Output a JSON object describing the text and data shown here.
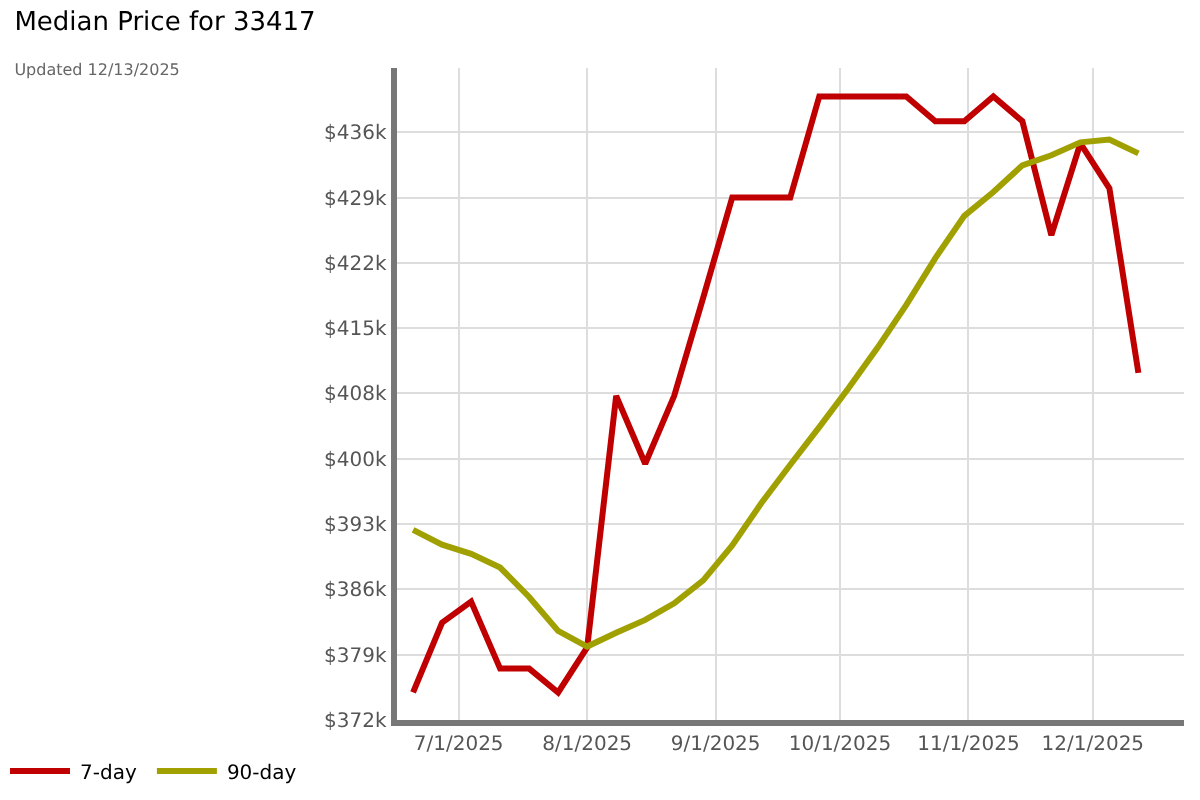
{
  "chart_data": {
    "type": "line",
    "title": "Median Price for 33417",
    "subtitle": "Updated 12/13/2025",
    "x": [
      "2025-06-20",
      "2025-06-27",
      "2025-07-04",
      "2025-07-11",
      "2025-07-18",
      "2025-07-25",
      "2025-08-01",
      "2025-08-08",
      "2025-08-15",
      "2025-08-22",
      "2025-08-29",
      "2025-09-05",
      "2025-09-12",
      "2025-09-19",
      "2025-09-26",
      "2025-10-03",
      "2025-10-10",
      "2025-10-17",
      "2025-10-24",
      "2025-10-31",
      "2025-11-07",
      "2025-11-14",
      "2025-11-21",
      "2025-11-28",
      "2025-12-05",
      "2025-12-12"
    ],
    "series": [
      {
        "name": "7-day",
        "color": "#c00000",
        "values": [
          375.0,
          382.6,
          384.9,
          377.6,
          377.6,
          375.0,
          379.9,
          407.3,
          399.9,
          407.3,
          418.0,
          428.9,
          428.9,
          428.9,
          439.9,
          439.9,
          439.9,
          439.9,
          437.2,
          437.2,
          439.9,
          437.2,
          424.8,
          434.8,
          429.9,
          409.8
        ]
      },
      {
        "name": "90-day",
        "color": "#a0a000",
        "values": [
          392.7,
          391.1,
          390.1,
          388.6,
          385.4,
          381.7,
          380.0,
          381.5,
          382.9,
          384.7,
          387.2,
          391.0,
          395.6,
          399.8,
          403.9,
          408.1,
          412.5,
          417.2,
          422.3,
          426.9,
          429.5,
          432.4,
          433.5,
          434.9,
          435.2,
          433.7
        ]
      }
    ],
    "xlim": [
      "2025-06-16",
      "2025-12-23"
    ],
    "xticks": [
      {
        "value": "2025-07-01",
        "label": "7/1/2025"
      },
      {
        "value": "2025-08-01",
        "label": "8/1/2025"
      },
      {
        "value": "2025-09-01",
        "label": "9/1/2025"
      },
      {
        "value": "2025-10-01",
        "label": "10/1/2025"
      },
      {
        "value": "2025-11-01",
        "label": "11/1/2025"
      },
      {
        "value": "2025-12-01",
        "label": "12/1/2025"
      }
    ],
    "ylim": [
      372,
      443
    ],
    "yticks": [
      {
        "value": 372,
        "label": "$372k"
      },
      {
        "value": 379.11,
        "label": "$379k"
      },
      {
        "value": 386.22,
        "label": "$386k"
      },
      {
        "value": 393.33,
        "label": "$393k"
      },
      {
        "value": 400.44,
        "label": "$400k"
      },
      {
        "value": 407.56,
        "label": "$408k"
      },
      {
        "value": 414.67,
        "label": "$415k"
      },
      {
        "value": 421.78,
        "label": "$422k"
      },
      {
        "value": 428.89,
        "label": "$429k"
      },
      {
        "value": 436,
        "label": "$436k"
      }
    ],
    "grid": true,
    "legend": "bottom left",
    "marker": "none",
    "line_style": "solid"
  }
}
